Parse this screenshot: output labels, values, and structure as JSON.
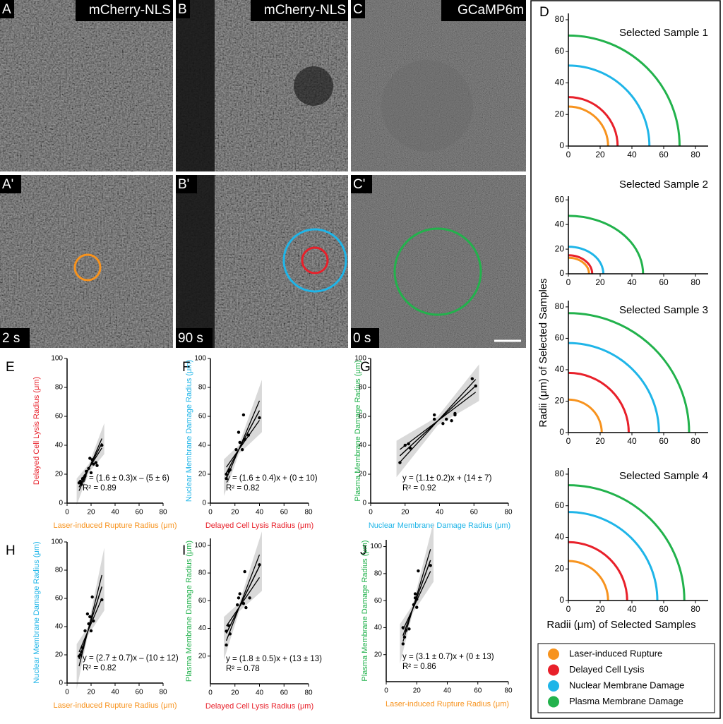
{
  "micrographs": {
    "panels": [
      {
        "letter": "A",
        "label": "mCherry-NLS"
      },
      {
        "letter": "B",
        "label": "mCherry-NLS"
      },
      {
        "letter": "C",
        "label": "GCaMP6m"
      },
      {
        "letter": "A'",
        "time": "2 s"
      },
      {
        "letter": "B'",
        "time": "90 s"
      },
      {
        "letter": "C'",
        "time": "0 s"
      }
    ]
  },
  "panel_d": {
    "letter": "D",
    "y_label": "Radii (μm) of Selected Samples",
    "x_label": "Radii (μm) of Selected Samples"
  },
  "legend": {
    "series": [
      {
        "name": "Laser-induced Rupture",
        "color": "#f7931e"
      },
      {
        "name": "Delayed Cell Lysis",
        "color": "#e8202a"
      },
      {
        "name": "Nuclear Membrane Damage",
        "color": "#1fb5e8"
      },
      {
        "name": "Plasma Membrane Damage",
        "color": "#22b24c"
      }
    ]
  },
  "chart_data": [
    {
      "type": "arc",
      "title": "Selected Sample 1",
      "values": [
        25,
        31,
        51,
        70
      ],
      "xlim": [
        0,
        88
      ],
      "ylim": [
        0,
        84
      ],
      "xticks": [
        0,
        20,
        40,
        60,
        80
      ],
      "yticks": [
        0,
        20,
        40,
        60,
        80
      ]
    },
    {
      "type": "arc",
      "title": "Selected Sample 2",
      "values": [
        13,
        15,
        22,
        47
      ],
      "xlim": [
        0,
        88
      ],
      "ylim": [
        0,
        63
      ],
      "xticks": [
        0,
        20,
        40,
        60,
        80
      ],
      "yticks": [
        0,
        20,
        40,
        60
      ]
    },
    {
      "type": "arc",
      "title": "Selected Sample 3",
      "values": [
        21,
        38,
        57,
        76
      ],
      "xlim": [
        0,
        88
      ],
      "ylim": [
        0,
        84
      ],
      "xticks": [
        0,
        20,
        40,
        60,
        80
      ],
      "yticks": [
        0,
        20,
        40,
        60,
        80
      ]
    },
    {
      "type": "arc",
      "title": "Selected Sample 4",
      "values": [
        25,
        37,
        56,
        73
      ],
      "xlim": [
        0,
        88
      ],
      "ylim": [
        0,
        84
      ],
      "xticks": [
        0,
        20,
        40,
        60,
        80
      ],
      "yticks": [
        0,
        20,
        40,
        60,
        80
      ]
    },
    {
      "type": "scatter",
      "letter": "E",
      "x_label": "Laser-induced Rupture Radius (μm)",
      "x_label_color": "#f7931e",
      "y_label": "Delayed Cell Lysis Radius (μm)",
      "y_label_color": "#e8202a",
      "equation": "y = (1.6 ± 0.3)x – (5 ± 6)",
      "r2": "R² = 0.89",
      "fit": {
        "slope": 1.6,
        "slope_err": 0.3,
        "intercept": -5
      },
      "x": [
        10,
        11,
        12,
        13,
        15,
        16,
        18,
        19,
        20,
        21,
        22,
        24,
        25,
        29
      ],
      "y": [
        14,
        15,
        13,
        17,
        19,
        22,
        24,
        31,
        21,
        30,
        27,
        28,
        26,
        40
      ],
      "xlim": [
        0,
        80
      ],
      "ylim": [
        0,
        100
      ],
      "xticks": [
        0,
        20,
        40,
        60,
        80
      ],
      "yticks": [
        0,
        20,
        40,
        60,
        80,
        100
      ]
    },
    {
      "type": "scatter",
      "letter": "F",
      "x_label": "Delayed Cell Lysis Radius (μm)",
      "x_label_color": "#e8202a",
      "y_label": "Nuclear Membrane Damage Radius (μm)",
      "y_label_color": "#1fb5e8",
      "equation": "y = (1.6 ± 0.4)x + (0 ± 10)",
      "r2": "R² = 0.82",
      "fit": {
        "slope": 1.6,
        "slope_err": 0.4,
        "intercept": 0
      },
      "x": [
        13,
        13,
        15,
        16,
        21,
        23,
        24,
        26,
        27,
        28,
        31,
        40
      ],
      "y": [
        17,
        20,
        22,
        23,
        37,
        49,
        42,
        37,
        61,
        44,
        47,
        59
      ],
      "xlim": [
        0,
        80
      ],
      "ylim": [
        0,
        100
      ],
      "xticks": [
        0,
        20,
        40,
        60,
        80
      ],
      "yticks": [
        0,
        20,
        40,
        60,
        80,
        100
      ]
    },
    {
      "type": "scatter",
      "letter": "G",
      "x_label": "Nuclear Membrane Damage Radius (μm)",
      "x_label_color": "#1fb5e8",
      "y_label": "Plasma Membrane Damage Radius (μm)",
      "y_label_color": "#22b24c",
      "equation": "y = (1.1± 0.2)x + (14 ± 7)",
      "r2": "R² = 0.92",
      "fit": {
        "slope": 1.1,
        "slope_err": 0.2,
        "intercept": 14
      },
      "x": [
        17,
        20,
        22,
        23,
        37,
        37,
        42,
        44,
        47,
        49,
        49,
        59,
        61
      ],
      "y": [
        28,
        40,
        41,
        38,
        58,
        61,
        55,
        58,
        57,
        61,
        62,
        86,
        81
      ],
      "xlim": [
        0,
        80
      ],
      "ylim": [
        0,
        100
      ],
      "xticks": [
        0,
        20,
        40,
        60,
        80
      ],
      "yticks": [
        0,
        20,
        40,
        60,
        80,
        100
      ]
    },
    {
      "type": "scatter",
      "letter": "H",
      "x_label": "Laser-induced Rupture Radius (μm)",
      "x_label_color": "#f7931e",
      "y_label": "Nuclear Membrane Damage Radius (μm)",
      "y_label_color": "#1fb5e8",
      "equation": "y = (2.7 ± 0.7)x – (10 ± 12)",
      "r2": "R² = 0.82",
      "fit": {
        "slope": 2.7,
        "slope_err": 0.7,
        "intercept": -10
      },
      "x": [
        10,
        11,
        12,
        13,
        15,
        17,
        18,
        19,
        20,
        21,
        22,
        29
      ],
      "y": [
        19,
        20,
        22,
        25,
        37,
        49,
        42,
        47,
        37,
        61,
        44,
        59
      ],
      "xlim": [
        0,
        80
      ],
      "ylim": [
        0,
        100
      ],
      "xticks": [
        0,
        20,
        40,
        60,
        80
      ],
      "yticks": [
        0,
        20,
        40,
        60,
        80,
        100
      ]
    },
    {
      "type": "scatter",
      "letter": "I",
      "x_label": "Delayed Cell Lysis Radius (μm)",
      "x_label_color": "#e8202a",
      "y_label": "Plasma Membrane Damage Radius (μm)",
      "y_label_color": "#22b24c",
      "equation": "y = (1.8 ± 0.5)x + (13 ± 13)",
      "r2": "R² = 0.78",
      "fit": {
        "slope": 1.8,
        "slope_err": 0.5,
        "intercept": 13
      },
      "x": [
        13,
        13,
        15,
        16,
        22,
        23,
        24,
        27,
        28,
        29,
        32,
        40
      ],
      "y": [
        28,
        38,
        42,
        36,
        57,
        62,
        65,
        58,
        81,
        55,
        62,
        86
      ],
      "xlim": [
        0,
        80
      ],
      "ylim": [
        0,
        105
      ],
      "xticks": [
        0,
        20,
        40,
        60,
        80
      ],
      "yticks": [
        20,
        40,
        60,
        80,
        100
      ]
    },
    {
      "type": "scatter",
      "letter": "J",
      "x_label": "Laser-induced Rupture Radius (μm)",
      "x_label_color": "#f7931e",
      "y_label": "Plasma Membrane Damage Radius (μm)",
      "y_label_color": "#22b24c",
      "equation": "y = (3.1 ± 0.7)x + (0 ± 13)",
      "r2": "R² = 0.86",
      "fit": {
        "slope": 3.1,
        "slope_err": 0.7,
        "intercept": 0
      },
      "x": [
        11,
        11,
        12,
        13,
        15,
        18,
        19,
        19,
        20,
        20,
        21,
        29
      ],
      "y": [
        40,
        28,
        33,
        38,
        39,
        57,
        65,
        62,
        61,
        55,
        82,
        86
      ],
      "xlim": [
        0,
        80
      ],
      "ylim": [
        0,
        105
      ],
      "xticks": [
        0,
        20,
        40,
        60,
        80
      ],
      "yticks": [
        20,
        40,
        60,
        80,
        100
      ]
    }
  ]
}
